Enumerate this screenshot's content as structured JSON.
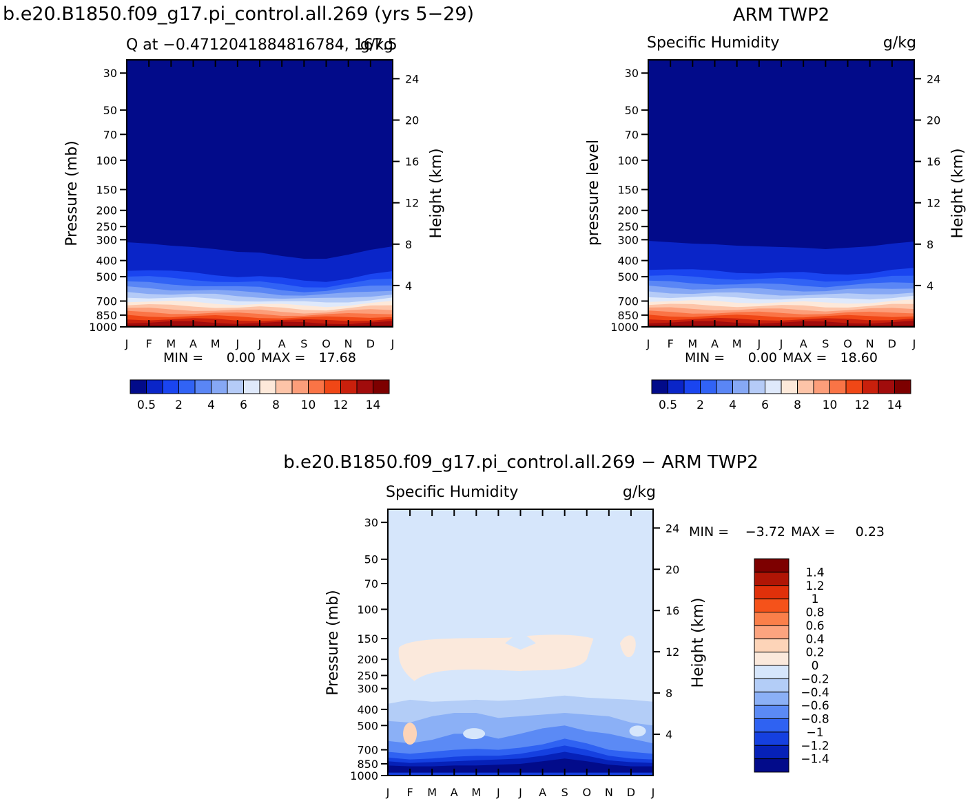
{
  "page": {
    "left_title": "b.e20.B1850.f09_g17.pi_control.all.269 (yrs 5−29)",
    "right_title": "ARM TWP2",
    "bottom_title": "b.e20.B1850.f09_g17.pi_control.all.269 − ARM TWP2"
  },
  "chart_data": [
    {
      "id": "model",
      "type": "heatmap",
      "title": "",
      "left_label": "Q at −0.4712041884816784, 167.5",
      "right_label": "g/kg",
      "ylabel": "Pressure (mb)",
      "ylabel_right": "Height (km)",
      "xlabel": "",
      "months": [
        "J",
        "F",
        "M",
        "A",
        "M",
        "J",
        "J",
        "A",
        "S",
        "O",
        "N",
        "D",
        "J"
      ],
      "pressure_ticks": [
        "30",
        "50",
        "70",
        "100",
        "150",
        "200",
        "250",
        "300",
        "400",
        "500",
        "700",
        "850",
        "1000"
      ],
      "height_ticks": [
        "24",
        "20",
        "16",
        "12",
        "8",
        "4"
      ],
      "ylim": [
        1000,
        25
      ],
      "min_label": "MIN =",
      "min_value": "0.00",
      "max_label": "MAX =",
      "max_value": "17.68",
      "colorbar_labels": [
        "0.5",
        "2",
        "4",
        "6",
        "8",
        "10",
        "12",
        "14"
      ],
      "colorbar_colors": [
        "#020b8a",
        "#0a25c8",
        "#1a45f0",
        "#3163f5",
        "#5a86f5",
        "#86a8f5",
        "#b5cbf7",
        "#dfe9fb",
        "#fde9da",
        "#fdc4a8",
        "#fc9e7a",
        "#fa7446",
        "#f04716",
        "#c9200c",
        "#a10c0c",
        "#7d0000"
      ],
      "top_profile": [
        352,
        354,
        357,
        359,
        362,
        366,
        367,
        372,
        376,
        376,
        370,
        363,
        358
      ],
      "cutoffs": [
        0.6,
        1.5,
        3.0,
        4.5,
        6.0,
        7.5,
        9.0,
        10.5,
        12.0,
        13.5,
        15.0
      ],
      "surface_max": [
        17.0,
        17.2,
        17.4,
        17.3,
        17.1,
        17.0,
        16.8,
        16.7,
        16.6,
        16.6,
        16.8,
        17.2,
        17.0
      ]
    },
    {
      "id": "obs",
      "type": "heatmap",
      "title": "",
      "left_label": "Specific Humidity",
      "right_label": "g/kg",
      "ylabel": "pressure level",
      "ylabel_right": "Height (km)",
      "xlabel": "",
      "months": [
        "J",
        "F",
        "M",
        "A",
        "M",
        "J",
        "J",
        "A",
        "S",
        "O",
        "N",
        "D",
        "J"
      ],
      "pressure_ticks": [
        "30",
        "50",
        "70",
        "100",
        "150",
        "200",
        "250",
        "300",
        "400",
        "500",
        "700",
        "850",
        "1000"
      ],
      "height_ticks": [
        "24",
        "20",
        "16",
        "12",
        "8",
        "4"
      ],
      "ylim": [
        1000,
        25
      ],
      "min_label": "MIN =",
      "min_value": "0.00",
      "max_label": "MAX =",
      "max_value": "18.60",
      "colorbar_labels": [
        "0.5",
        "2",
        "4",
        "6",
        "8",
        "10",
        "12",
        "14"
      ],
      "colorbar_colors": [
        "#020b8a",
        "#0a25c8",
        "#1a45f0",
        "#3163f5",
        "#5a86f5",
        "#86a8f5",
        "#b5cbf7",
        "#dfe9fb",
        "#fde9da",
        "#fdc4a8",
        "#fc9e7a",
        "#fa7446",
        "#f04716",
        "#c9200c",
        "#a10c0c",
        "#7d0000"
      ],
      "top_profile": [
        350,
        352,
        354,
        355,
        357,
        358,
        359,
        360,
        362,
        360,
        358,
        354,
        351
      ],
      "cutoffs": [
        0.6,
        1.5,
        3.0,
        4.5,
        6.0,
        7.5,
        9.0,
        10.5,
        12.0,
        13.5,
        15.0
      ],
      "surface_max": [
        18.2,
        18.3,
        18.5,
        18.4,
        18.3,
        18.1,
        18.0,
        17.9,
        17.9,
        18.0,
        18.2,
        18.4,
        18.2
      ]
    },
    {
      "id": "diff",
      "type": "heatmap",
      "title": "",
      "left_label": "Specific Humidity",
      "right_label": "g/kg",
      "ylabel": "Pressure (mb)",
      "ylabel_right": "Height (km)",
      "xlabel": "",
      "months": [
        "J",
        "F",
        "M",
        "A",
        "M",
        "J",
        "J",
        "A",
        "S",
        "O",
        "N",
        "D",
        "J"
      ],
      "pressure_ticks": [
        "30",
        "50",
        "70",
        "100",
        "150",
        "200",
        "250",
        "300",
        "400",
        "500",
        "700",
        "850",
        "1000"
      ],
      "height_ticks": [
        "24",
        "20",
        "16",
        "12",
        "8",
        "4"
      ],
      "ylim": [
        1000,
        25
      ],
      "min_label": "MIN =",
      "min_value": "−3.72",
      "max_label": "MAX =",
      "max_value": "0.23",
      "colorbar_labels": [
        "1.4",
        "1.2",
        "1",
        "0.8",
        "0.6",
        "0.4",
        "0.2",
        "0",
        "−0.2",
        "−0.4",
        "−0.6",
        "−0.8",
        "−1",
        "−1.2",
        "−1.4"
      ],
      "colorbar_colors": [
        "#7d0000",
        "#b01505",
        "#e0300a",
        "#f5521a",
        "#fa7f4a",
        "#fca47f",
        "#fdd4b8",
        "#fbe9dc",
        "#d6e6fb",
        "#b3cdf7",
        "#8bb0f6",
        "#5b8af5",
        "#2f62f2",
        "#1540e0",
        "#0621b8",
        "#020b8a"
      ],
      "background": "#d6e6fb"
    }
  ]
}
